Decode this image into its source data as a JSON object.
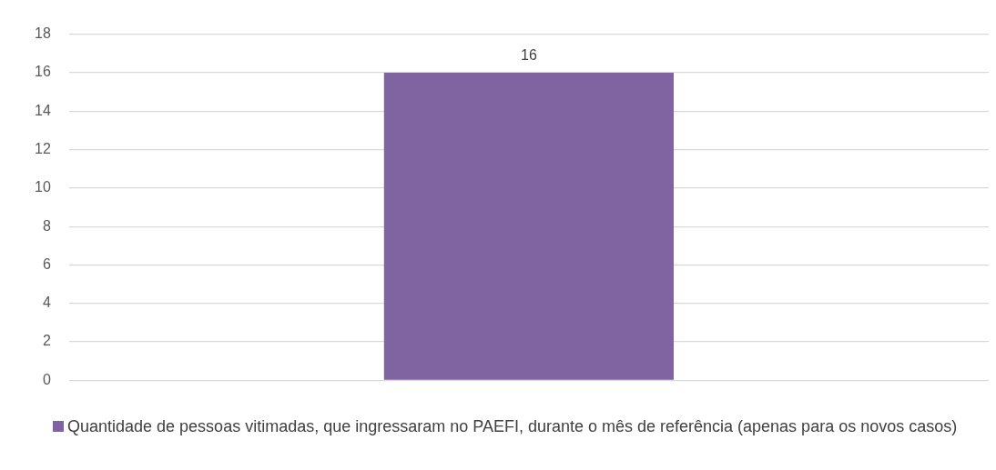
{
  "chart_data": {
    "type": "bar",
    "categories": [
      null
    ],
    "series": [
      {
        "name": "Quantidade de pessoas vitimadas, que ingressaram no PAEFI, durante o mês de referência (apenas para os novos casos)",
        "color": "#8064a2",
        "values": [
          16
        ]
      }
    ],
    "ylim": [
      0,
      18
    ],
    "yticks": [
      0,
      2,
      4,
      6,
      8,
      10,
      12,
      14,
      16,
      18
    ],
    "grid": "y",
    "legend": "bottom",
    "data_labels": true
  }
}
